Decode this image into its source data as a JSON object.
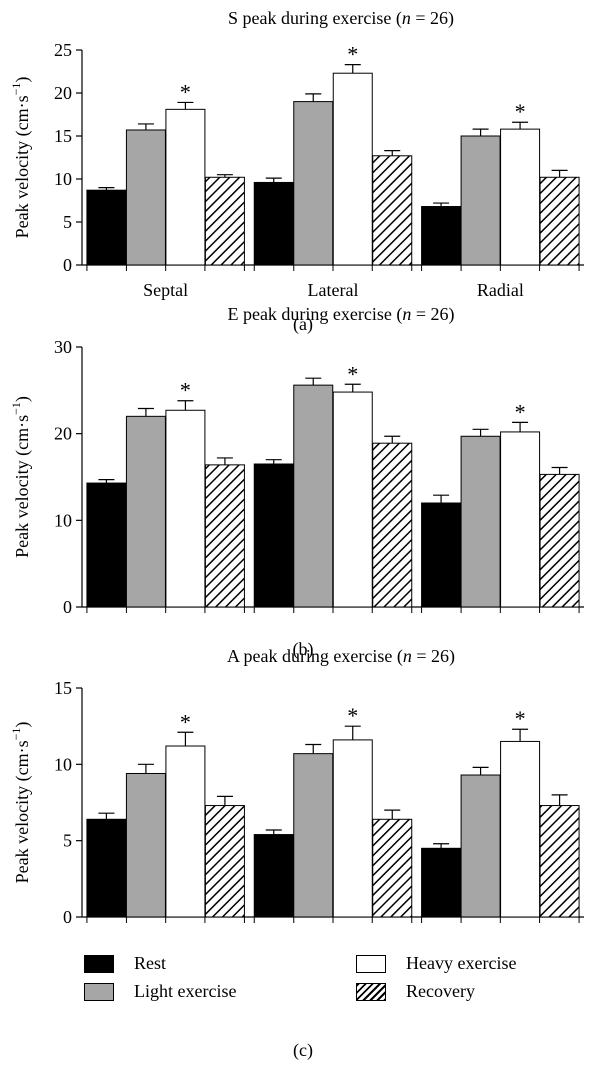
{
  "colors": {
    "rest": "#000000",
    "light": "#a6a6a6",
    "heavy": "#ffffff",
    "recovery": "hatch"
  },
  "legend": {
    "rest": "Rest",
    "light": "Light exercise",
    "heavy": "Heavy exercise",
    "recovery": "Recovery"
  },
  "chart_data": [
    {
      "type": "bar",
      "panel": "(a)",
      "title_prefix": "S peak during exercise (",
      "title_n": "n",
      "title_suffix": " = 26)",
      "ylabel_main": "Peak velocity (cm·s",
      "ylabel_sup": "−1",
      "ylabel_close": ")",
      "categories": [
        "Septal",
        "Lateral",
        "Radial"
      ],
      "ylim": [
        0,
        25
      ],
      "yticks": [
        0,
        5,
        10,
        15,
        20,
        25
      ],
      "series": [
        {
          "name": "Rest",
          "values": [
            8.7,
            9.6,
            6.8
          ],
          "errors": [
            0.3,
            0.5,
            0.4
          ]
        },
        {
          "name": "Light exercise",
          "values": [
            15.7,
            19.0,
            15.0
          ],
          "errors": [
            0.7,
            0.9,
            0.8
          ]
        },
        {
          "name": "Heavy exercise",
          "values": [
            18.1,
            22.3,
            15.8
          ],
          "errors": [
            0.8,
            1.0,
            0.8
          ]
        },
        {
          "name": "Recovery",
          "values": [
            10.2,
            12.7,
            10.2
          ],
          "errors": [
            0.3,
            0.6,
            0.8
          ]
        }
      ],
      "significance": [
        "*",
        "*",
        "*"
      ]
    },
    {
      "type": "bar",
      "panel": "(b)",
      "title_prefix": "E peak during exercise (",
      "title_n": "n",
      "title_suffix": " = 26)",
      "ylabel_main": "Peak velocity (cm·s",
      "ylabel_sup": "−1",
      "ylabel_close": ")",
      "categories": [
        "",
        "",
        ""
      ],
      "ylim": [
        0,
        30
      ],
      "yticks": [
        0,
        10,
        20,
        30
      ],
      "series": [
        {
          "name": "Rest",
          "values": [
            14.3,
            16.5,
            12.0
          ],
          "errors": [
            0.4,
            0.5,
            0.9
          ]
        },
        {
          "name": "Light exercise",
          "values": [
            22.0,
            25.6,
            19.7
          ],
          "errors": [
            0.9,
            0.8,
            0.8
          ]
        },
        {
          "name": "Heavy exercise",
          "values": [
            22.7,
            24.8,
            20.2
          ],
          "errors": [
            1.1,
            0.9,
            1.1
          ]
        },
        {
          "name": "Recovery",
          "values": [
            16.4,
            18.9,
            15.3
          ],
          "errors": [
            0.8,
            0.8,
            0.8
          ]
        }
      ],
      "significance": [
        "*",
        "*",
        "*"
      ]
    },
    {
      "type": "bar",
      "panel": "(c)",
      "title_prefix": "A peak during exercise (",
      "title_n": "n",
      "title_suffix": " = 26)",
      "ylabel_main": "Peak velocity (cm·s",
      "ylabel_sup": "−1",
      "ylabel_close": ")",
      "categories": [
        "",
        "",
        ""
      ],
      "ylim": [
        0,
        15
      ],
      "yticks": [
        0,
        5,
        10,
        15
      ],
      "series": [
        {
          "name": "Rest",
          "values": [
            6.4,
            5.4,
            4.5
          ],
          "errors": [
            0.4,
            0.3,
            0.3
          ]
        },
        {
          "name": "Light exercise",
          "values": [
            9.4,
            10.7,
            9.3
          ],
          "errors": [
            0.6,
            0.6,
            0.5
          ]
        },
        {
          "name": "Heavy exercise",
          "values": [
            11.2,
            11.6,
            11.5
          ],
          "errors": [
            0.9,
            0.9,
            0.8
          ]
        },
        {
          "name": "Recovery",
          "values": [
            7.3,
            6.4,
            7.3
          ],
          "errors": [
            0.6,
            0.6,
            0.7
          ]
        }
      ],
      "significance": [
        "*",
        "*",
        "*"
      ]
    }
  ]
}
